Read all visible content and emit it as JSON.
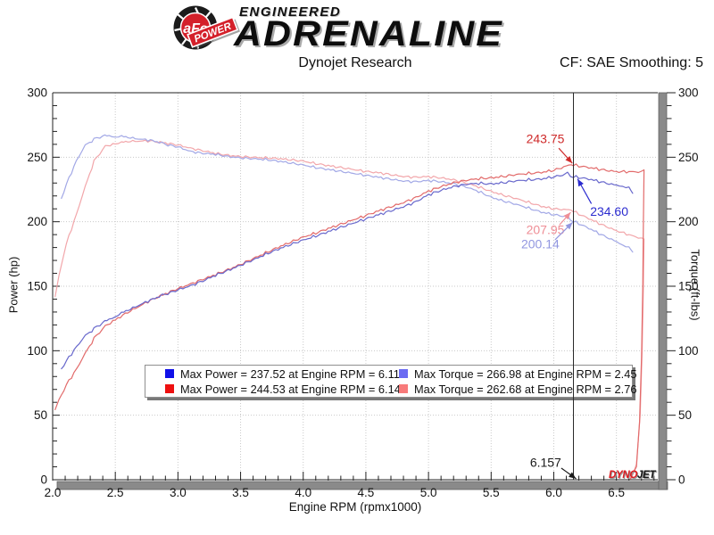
{
  "header": {
    "brand_circle_text": "aFe",
    "brand_banner_text": "POWER",
    "brand_line1": "ENGINEERED",
    "brand_line2": "ADRENALINE",
    "title": "Dynojet Research",
    "correction": "CF: SAE Smoothing: 5"
  },
  "watermark": {
    "part1": "DYNO",
    "part2": "JET"
  },
  "legend": {
    "entries": [
      {
        "swatch": "#1010e8",
        "label": "Max Power = 237.52 at Engine RPM = 6.11"
      },
      {
        "swatch": "#6b6bf2",
        "label": "Max Torque = 266.98 at Engine RPM = 2.45"
      },
      {
        "swatch": "#ee1010",
        "label": "Max Power = 244.53 at Engine RPM = 6.14"
      },
      {
        "swatch": "#f87b7b",
        "label": "Max Torque = 262.68 at Engine RPM = 2.76"
      }
    ]
  },
  "chart_data": {
    "type": "line",
    "title": "Dynojet Research",
    "xlabel": "Engine RPM (rpmx1000)",
    "ylabel_left": "Power (hp)",
    "ylabel_right": "Torque (ft-lbs)",
    "xlim": [
      2.0,
      6.83
    ],
    "ylim": [
      0,
      300
    ],
    "x_major_ticks": [
      2.0,
      2.5,
      3.0,
      3.5,
      4.0,
      4.5,
      5.0,
      5.5,
      6.0,
      6.5
    ],
    "x_minor_step": 0.1,
    "y_major_ticks": [
      0,
      50,
      100,
      150,
      200,
      250,
      300
    ],
    "y_minor_step": 10,
    "grid": true,
    "cursor_rpm": 6.157,
    "series": [
      {
        "name": "torque-red",
        "axis": "torque",
        "color": "#f2a6aa",
        "noise": 0.9,
        "points": [
          [
            2.02,
            142
          ],
          [
            2.05,
            158
          ],
          [
            2.11,
            183
          ],
          [
            2.19,
            206
          ],
          [
            2.26,
            227
          ],
          [
            2.33,
            247
          ],
          [
            2.42,
            258.5
          ],
          [
            2.5,
            260.5
          ],
          [
            2.55,
            261.5
          ],
          [
            2.6,
            262.3
          ],
          [
            2.7,
            262.5
          ],
          [
            2.76,
            262.7
          ],
          [
            2.8,
            262.4
          ],
          [
            2.9,
            261
          ],
          [
            3.0,
            259.5
          ],
          [
            3.1,
            257
          ],
          [
            3.2,
            255
          ],
          [
            3.3,
            253
          ],
          [
            3.4,
            251.5
          ],
          [
            3.5,
            250.5
          ],
          [
            3.6,
            250
          ],
          [
            3.7,
            249.5
          ],
          [
            3.8,
            249
          ],
          [
            3.9,
            248
          ],
          [
            4.0,
            247
          ],
          [
            4.1,
            245
          ],
          [
            4.2,
            243.5
          ],
          [
            4.3,
            242
          ],
          [
            4.4,
            240.5
          ],
          [
            4.5,
            239
          ],
          [
            4.6,
            238
          ],
          [
            4.7,
            236.5
          ],
          [
            4.8,
            235
          ],
          [
            4.9,
            234.5
          ],
          [
            5.0,
            235
          ],
          [
            5.1,
            234
          ],
          [
            5.2,
            232.5
          ],
          [
            5.3,
            230
          ],
          [
            5.4,
            227
          ],
          [
            5.5,
            223.5
          ],
          [
            5.6,
            220.5
          ],
          [
            5.7,
            218
          ],
          [
            5.8,
            215
          ],
          [
            5.9,
            212
          ],
          [
            6.0,
            210
          ],
          [
            6.1,
            209.3
          ],
          [
            6.14,
            209.2
          ],
          [
            6.157,
            207.95
          ],
          [
            6.2,
            206
          ],
          [
            6.3,
            201.5
          ],
          [
            6.4,
            197
          ],
          [
            6.5,
            193
          ],
          [
            6.6,
            190
          ],
          [
            6.65,
            188.5
          ],
          [
            6.7,
            187.5
          ],
          [
            6.72,
            186
          ],
          [
            6.715,
            150
          ],
          [
            6.705,
            100
          ],
          [
            6.69,
            50
          ],
          [
            6.66,
            12
          ],
          [
            6.62,
            1
          ]
        ]
      },
      {
        "name": "torque-blue",
        "axis": "torque",
        "color": "#a2a8e6",
        "noise": 0.9,
        "points": [
          [
            2.07,
            218
          ],
          [
            2.11,
            229
          ],
          [
            2.19,
            247.5
          ],
          [
            2.26,
            259
          ],
          [
            2.33,
            264
          ],
          [
            2.4,
            266.5
          ],
          [
            2.45,
            266.98
          ],
          [
            2.5,
            265.8
          ],
          [
            2.55,
            266.3
          ],
          [
            2.62,
            265
          ],
          [
            2.7,
            264
          ],
          [
            2.78,
            263.3
          ],
          [
            2.85,
            261.5
          ],
          [
            2.92,
            259.5
          ],
          [
            3.0,
            258
          ],
          [
            3.1,
            254.5
          ],
          [
            3.2,
            253
          ],
          [
            3.3,
            252.3
          ],
          [
            3.4,
            250.5
          ],
          [
            3.5,
            249.5
          ],
          [
            3.6,
            248.8
          ],
          [
            3.7,
            248.2
          ],
          [
            3.8,
            247
          ],
          [
            3.9,
            245.5
          ],
          [
            4.0,
            244
          ],
          [
            4.1,
            242
          ],
          [
            4.2,
            240.5
          ],
          [
            4.3,
            239
          ],
          [
            4.4,
            237.5
          ],
          [
            4.5,
            236
          ],
          [
            4.6,
            234.5
          ],
          [
            4.7,
            233
          ],
          [
            4.8,
            231.5
          ],
          [
            4.9,
            231
          ],
          [
            5.0,
            232
          ],
          [
            5.1,
            231
          ],
          [
            5.2,
            229.5
          ],
          [
            5.3,
            227
          ],
          [
            5.4,
            223.5
          ],
          [
            5.5,
            219
          ],
          [
            5.6,
            216
          ],
          [
            5.7,
            213.5
          ],
          [
            5.8,
            210.5
          ],
          [
            5.9,
            207.5
          ],
          [
            6.0,
            205.5
          ],
          [
            6.05,
            204.6
          ],
          [
            6.11,
            204.1
          ],
          [
            6.157,
            200.14
          ],
          [
            6.2,
            198.5
          ],
          [
            6.3,
            194
          ],
          [
            6.4,
            189
          ],
          [
            6.5,
            184.5
          ],
          [
            6.55,
            182
          ],
          [
            6.6,
            180.5
          ],
          [
            6.63,
            176
          ]
        ]
      },
      {
        "name": "power-red",
        "axis": "power",
        "color": "#e26a6a",
        "noise": 1.0,
        "points": [
          [
            2.02,
            54.6
          ],
          [
            2.05,
            61.7
          ],
          [
            2.11,
            73.5
          ],
          [
            2.19,
            85.9
          ],
          [
            2.26,
            97.7
          ],
          [
            2.33,
            109.6
          ],
          [
            2.42,
            119.1
          ],
          [
            2.5,
            124
          ],
          [
            2.6,
            129.8
          ],
          [
            2.7,
            134.9
          ],
          [
            2.76,
            138.1
          ],
          [
            2.8,
            139.9
          ],
          [
            2.9,
            144.1
          ],
          [
            3.0,
            148.2
          ],
          [
            3.1,
            151.7
          ],
          [
            3.2,
            155.4
          ],
          [
            3.3,
            159
          ],
          [
            3.4,
            162.8
          ],
          [
            3.5,
            166.9
          ],
          [
            3.6,
            171.4
          ],
          [
            3.7,
            175.8
          ],
          [
            3.8,
            180.2
          ],
          [
            3.9,
            184.2
          ],
          [
            4.0,
            188.1
          ],
          [
            4.1,
            191.2
          ],
          [
            4.2,
            194.7
          ],
          [
            4.3,
            198.1
          ],
          [
            4.4,
            201.5
          ],
          [
            4.5,
            204.8
          ],
          [
            4.6,
            208.4
          ],
          [
            4.7,
            211.6
          ],
          [
            4.8,
            214.8
          ],
          [
            4.9,
            218.8
          ],
          [
            5.0,
            223.7
          ],
          [
            5.1,
            227.2
          ],
          [
            5.2,
            230.2
          ],
          [
            5.3,
            232.1
          ],
          [
            5.4,
            233.4
          ],
          [
            5.5,
            234
          ],
          [
            5.6,
            235.1
          ],
          [
            5.7,
            236.6
          ],
          [
            5.8,
            237.4
          ],
          [
            5.9,
            238.2
          ],
          [
            6.0,
            239.9
          ],
          [
            6.1,
            243.1
          ],
          [
            6.14,
            244.53
          ],
          [
            6.157,
            243.75
          ],
          [
            6.2,
            243.2
          ],
          [
            6.3,
            241.7
          ],
          [
            6.4,
            240.1
          ],
          [
            6.5,
            238.8
          ],
          [
            6.6,
            238.8
          ],
          [
            6.65,
            238.7
          ],
          [
            6.7,
            239.2
          ],
          [
            6.72,
            239.5
          ],
          [
            6.715,
            200
          ],
          [
            6.71,
            150
          ],
          [
            6.7,
            95
          ],
          [
            6.685,
            45
          ],
          [
            6.66,
            10
          ],
          [
            6.61,
            0.5
          ]
        ]
      },
      {
        "name": "power-blue",
        "axis": "power",
        "color": "#6868cc",
        "noise": 1.0,
        "points": [
          [
            2.07,
            85.9
          ],
          [
            2.11,
            92
          ],
          [
            2.19,
            103.2
          ],
          [
            2.26,
            111.4
          ],
          [
            2.33,
            117.1
          ],
          [
            2.4,
            121.8
          ],
          [
            2.45,
            124.6
          ],
          [
            2.5,
            126.5
          ],
          [
            2.55,
            129.3
          ],
          [
            2.62,
            132.2
          ],
          [
            2.7,
            135.8
          ],
          [
            2.78,
            139.3
          ],
          [
            2.85,
            142
          ],
          [
            2.92,
            144.4
          ],
          [
            3.0,
            147.2
          ],
          [
            3.1,
            150.3
          ],
          [
            3.2,
            154.1
          ],
          [
            3.3,
            158.5
          ],
          [
            3.4,
            162.2
          ],
          [
            3.5,
            166.3
          ],
          [
            3.6,
            170.4
          ],
          [
            3.7,
            174.7
          ],
          [
            3.8,
            178.7
          ],
          [
            3.9,
            182.3
          ],
          [
            4.0,
            185.8
          ],
          [
            4.1,
            188.9
          ],
          [
            4.2,
            192.3
          ],
          [
            4.3,
            195.7
          ],
          [
            4.4,
            198.9
          ],
          [
            4.5,
            202.2
          ],
          [
            4.6,
            205.4
          ],
          [
            4.7,
            208.5
          ],
          [
            4.8,
            211.6
          ],
          [
            4.9,
            215.5
          ],
          [
            5.0,
            220.9
          ],
          [
            5.1,
            224.3
          ],
          [
            5.2,
            227.2
          ],
          [
            5.3,
            229
          ],
          [
            5.4,
            229.8
          ],
          [
            5.5,
            229.3
          ],
          [
            5.6,
            230.3
          ],
          [
            5.7,
            231.7
          ],
          [
            5.8,
            232.4
          ],
          [
            5.9,
            233.1
          ],
          [
            6.0,
            234.8
          ],
          [
            6.05,
            235.7
          ],
          [
            6.11,
            237.52
          ],
          [
            6.157,
            234.6
          ],
          [
            6.2,
            234.3
          ],
          [
            6.3,
            232.7
          ],
          [
            6.4,
            230.3
          ],
          [
            6.5,
            228.3
          ],
          [
            6.55,
            227.5
          ],
          [
            6.6,
            226.9
          ],
          [
            6.63,
            221.5
          ]
        ]
      }
    ],
    "annotations": [
      {
        "text": "243.75",
        "color": "#cf2b2b",
        "label_rpm": 5.78,
        "label_val": 261,
        "arrow": {
          "from_rpm": 6.04,
          "from_val": 257,
          "to_rpm": 6.148,
          "to_val": 245.3
        }
      },
      {
        "text": "234.60",
        "color": "#2b2bcf",
        "label_rpm": 6.29,
        "label_val": 204.5,
        "arrow": {
          "from_rpm": 6.3,
          "from_val": 214,
          "to_rpm": 6.19,
          "to_val": 233.2
        }
      },
      {
        "text": "207.95",
        "color": "#ef8e96",
        "label_rpm": 5.78,
        "label_val": 190.5,
        "arrow": {
          "from_rpm": 6.045,
          "from_val": 197.5,
          "to_rpm": 6.135,
          "to_val": 207.3
        }
      },
      {
        "text": "200.14",
        "color": "#9297e0",
        "label_rpm": 5.74,
        "label_val": 179.5,
        "arrow": {
          "from_rpm": 6.01,
          "from_val": 186,
          "to_rpm": 6.15,
          "to_val": 199.5
        }
      },
      {
        "text": "6.157",
        "color": "#1a1a1a",
        "label_rpm": 5.81,
        "label_val": 10,
        "arrow": {
          "from_rpm": 6.06,
          "from_val": 9,
          "to_rpm": 6.178,
          "to_val": 0.8
        }
      }
    ]
  }
}
